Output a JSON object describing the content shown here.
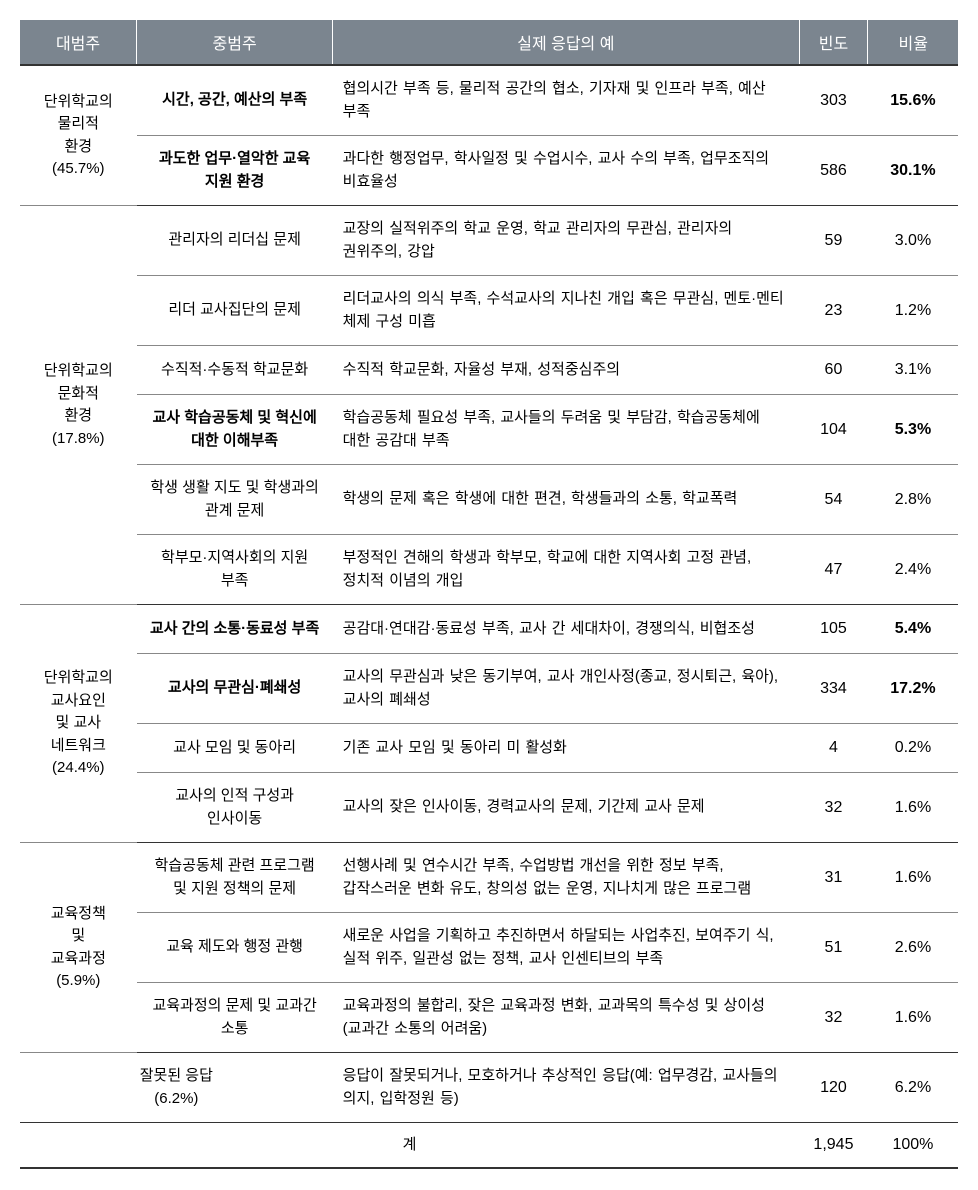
{
  "headers": {
    "major": "대범주",
    "middle": "중범주",
    "example": "실제 응답의 예",
    "freq": "빈도",
    "ratio": "비율"
  },
  "groups": [
    {
      "major": "단위학교의 물리적 환경 (45.7%)",
      "rows": [
        {
          "middle": "시간, 공간, 예산의 부족",
          "middleBold": true,
          "example": "협의시간 부족 등, 물리적 공간의 협소, 기자재 및 인프라 부족, 예산 부족",
          "freq": "303",
          "ratio": "15.6%",
          "ratioBold": true
        },
        {
          "middle": "과도한 업무·열악한 교육 지원 환경",
          "middleBold": true,
          "example": "과다한 행정업무, 학사일정 및 수업시수, 교사 수의 부족, 업무조직의 비효율성",
          "freq": "586",
          "ratio": "30.1%",
          "ratioBold": true
        }
      ]
    },
    {
      "major": "단위학교의 문화적 환경 (17.8%)",
      "rows": [
        {
          "middle": "관리자의 리더십 문제",
          "example": "교장의 실적위주의 학교 운영, 학교 관리자의 무관심, 관리자의 권위주의, 강압",
          "freq": "59",
          "ratio": "3.0%"
        },
        {
          "middle": "리더 교사집단의 문제",
          "example": "리더교사의 의식 부족, 수석교사의 지나친 개입 혹은 무관심, 멘토·멘티 체제 구성 미흡",
          "freq": "23",
          "ratio": "1.2%"
        },
        {
          "middle": "수직적·수동적 학교문화",
          "example": "수직적 학교문화, 자율성 부재, 성적중심주의",
          "freq": "60",
          "ratio": "3.1%"
        },
        {
          "middle": "교사 학습공동체 및 혁신에 대한 이해부족",
          "middleBold": true,
          "example": "학습공동체 필요성 부족, 교사들의 두려움 및 부담감, 학습공동체에 대한 공감대 부족",
          "freq": "104",
          "ratio": "5.3%",
          "ratioBold": true
        },
        {
          "middle": "학생 생활 지도 및 학생과의 관계 문제",
          "example": "학생의 문제 혹은 학생에 대한 편견, 학생들과의 소통, 학교폭력",
          "freq": "54",
          "ratio": "2.8%"
        },
        {
          "middle": "학부모·지역사회의 지원 부족",
          "example": "부정적인 견해의 학생과 학부모, 학교에 대한 지역사회 고정 관념, 정치적 이념의 개입",
          "freq": "47",
          "ratio": "2.4%"
        }
      ]
    },
    {
      "major": "단위학교의 교사요인 및 교사 네트워크 (24.4%)",
      "rows": [
        {
          "middle": "교사 간의 소통·동료성 부족",
          "middleBold": true,
          "example": "공감대·연대감·동료성 부족, 교사 간 세대차이, 경쟁의식, 비협조성",
          "freq": "105",
          "ratio": "5.4%",
          "ratioBold": true
        },
        {
          "middle": "교사의 무관심·폐쇄성",
          "middleBold": true,
          "example": "교사의 무관심과 낮은 동기부여, 교사 개인사정(종교, 정시퇴근, 육아), 교사의 폐쇄성",
          "freq": "334",
          "ratio": "17.2%",
          "ratioBold": true
        },
        {
          "middle": "교사 모임 및 동아리",
          "example": "기존 교사 모임 및 동아리 미 활성화",
          "freq": "4",
          "ratio": "0.2%"
        },
        {
          "middle": "교사의 인적 구성과 인사이동",
          "example": "교사의 잦은 인사이동, 경력교사의 문제, 기간제 교사 문제",
          "freq": "32",
          "ratio": "1.6%"
        }
      ]
    },
    {
      "major": "교육정책 및 교육과정 (5.9%)",
      "rows": [
        {
          "middle": "학습공동체 관련 프로그램 및 지원 정책의 문제",
          "example": "선행사례 및 연수시간 부족, 수업방법 개선을 위한 정보 부족, 갑작스러운 변화 유도, 창의성 없는 운영, 지나치게 많은 프로그램",
          "freq": "31",
          "ratio": "1.6%"
        },
        {
          "middle": "교육 제도와 행정 관행",
          "example": "새로운 사업을 기획하고 추진하면서 하달되는 사업추진, 보여주기 식, 실적 위주, 일관성 없는 정책, 교사 인센티브의 부족",
          "freq": "51",
          "ratio": "2.6%"
        },
        {
          "middle": "교육과정의 문제 및 교과간 소통",
          "example": "교육과정의 불합리, 잦은 교육과정 변화, 교과목의 특수성 및 상이성(교과간 소통의 어려움)",
          "freq": "32",
          "ratio": "1.6%"
        }
      ]
    }
  ],
  "wrongRow": {
    "middle": "잘못된 응답 (6.2%)",
    "example": "응답이 잘못되거나, 모호하거나 추상적인 응답(예: 업무경감, 교사들의 의지, 입학정원 등)",
    "freq": "120",
    "ratio": "6.2%"
  },
  "totalRow": {
    "label": "계",
    "freq": "1,945",
    "ratio": "100%"
  },
  "style": {
    "headerBg": "#7b858f",
    "headerColor": "#ffffff",
    "borderColor": "#888888",
    "groupBorderColor": "#333333",
    "fontSize": 15,
    "headerFontSize": 16
  }
}
